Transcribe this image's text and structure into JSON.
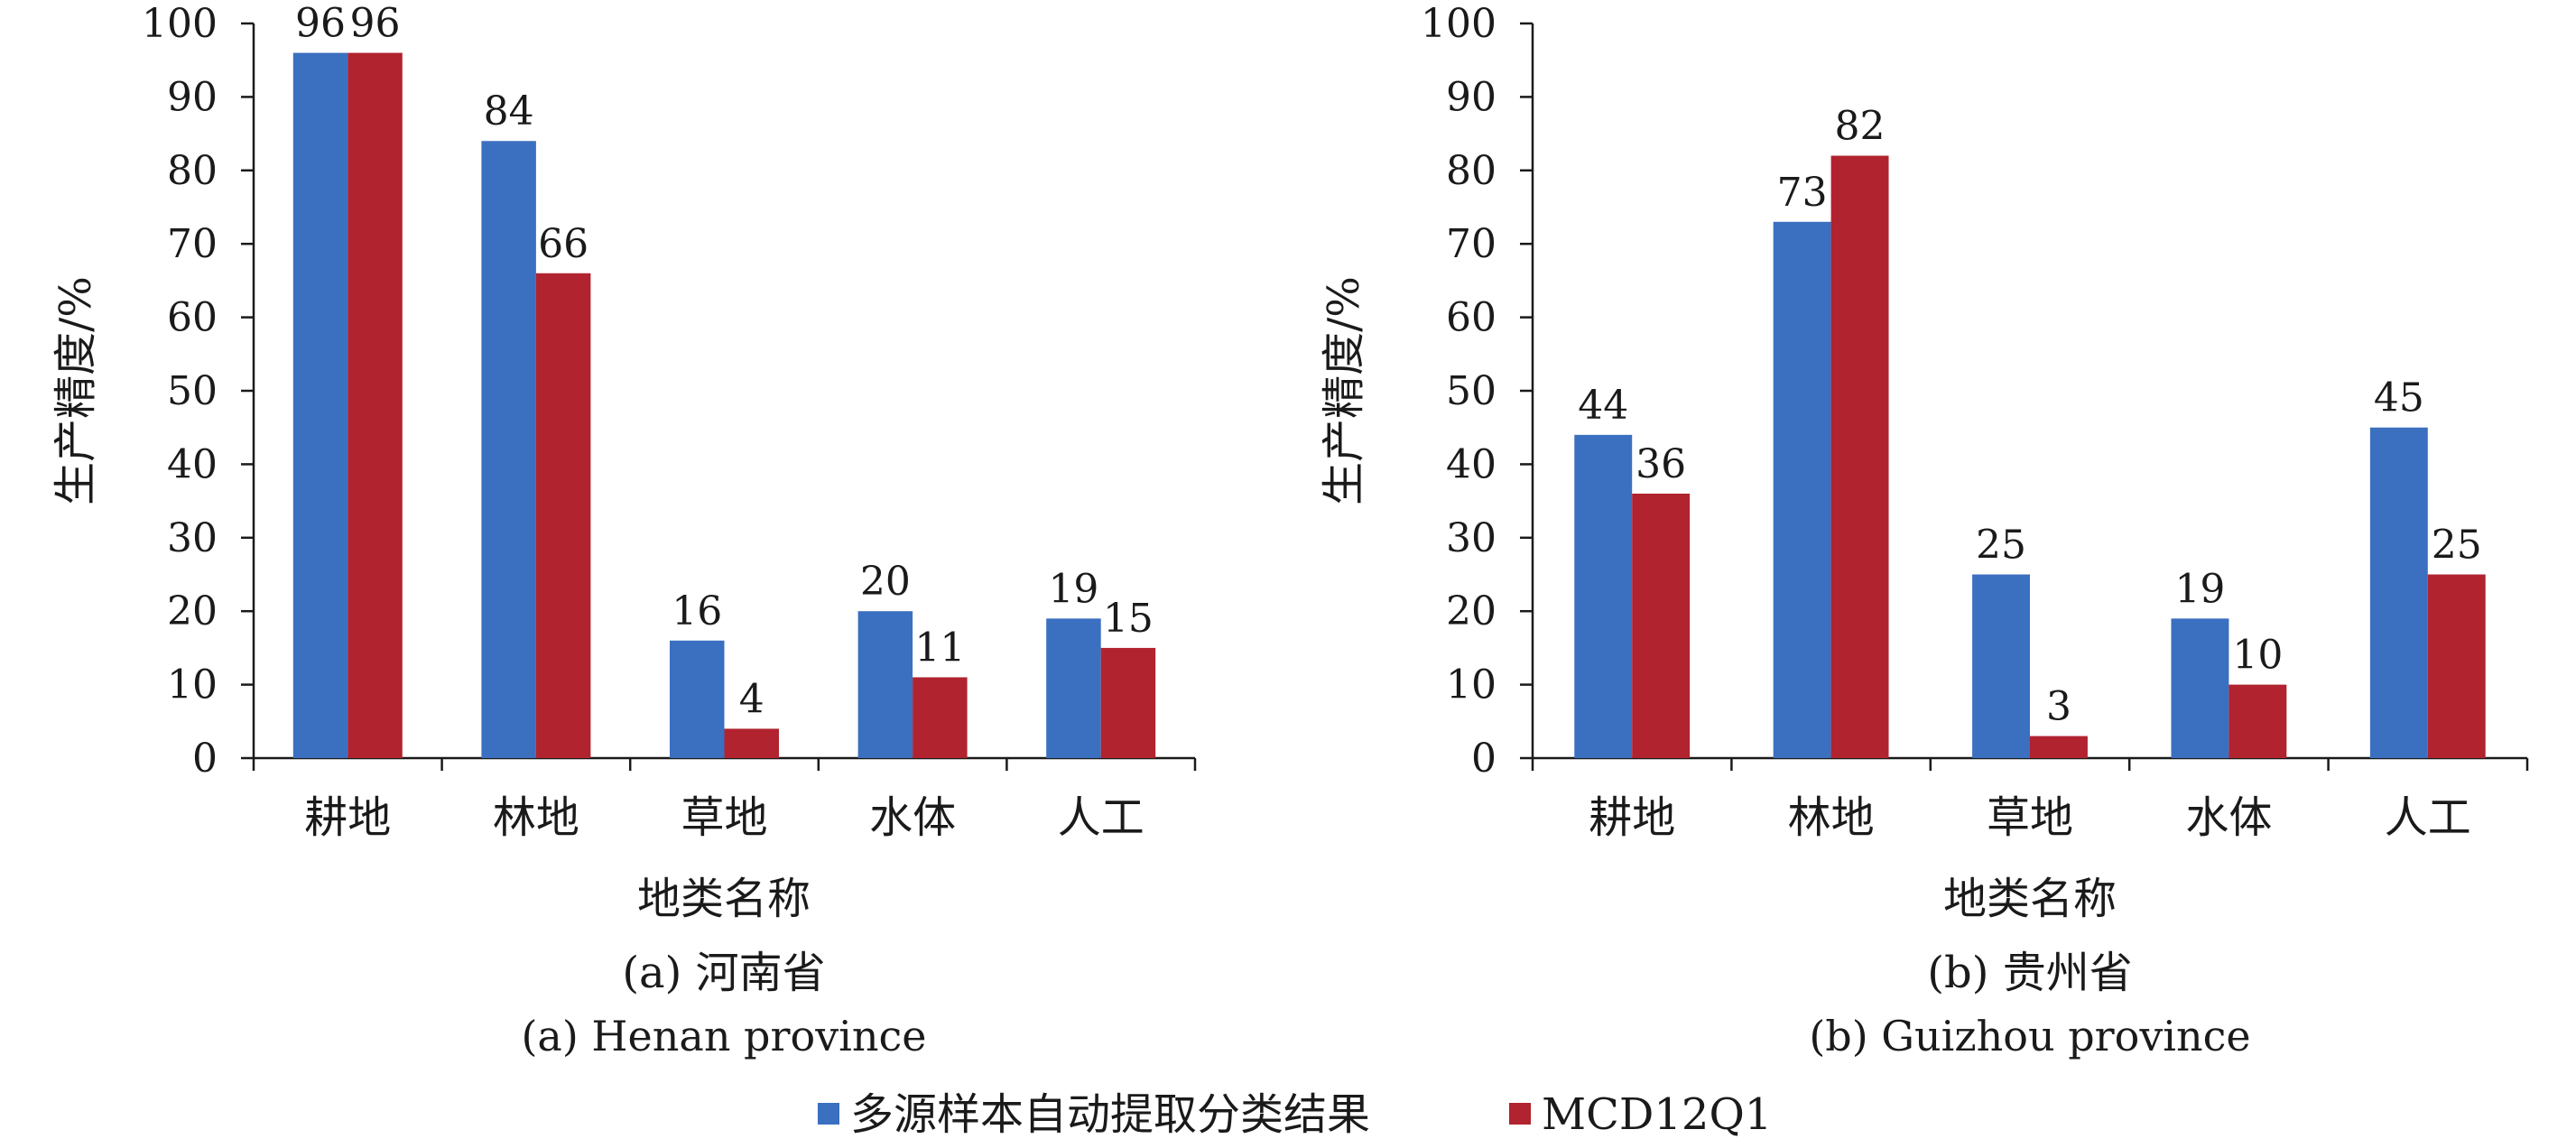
{
  "colors": {
    "series1": "#3b6fc0",
    "series2": "#b0232f",
    "axis": "#1a1a1a"
  },
  "chart_data": [
    {
      "type": "bar",
      "title": "(a) 河南省",
      "subtitle": "(a) Henan province",
      "xlabel": "地类名称",
      "ylabel": "生产精度/%",
      "ylim": [
        0,
        100
      ],
      "yticks": [
        "0",
        "10",
        "20",
        "30",
        "40",
        "50",
        "60",
        "70",
        "80",
        "90",
        "100"
      ],
      "categories": [
        "耕地",
        "林地",
        "草地",
        "水体",
        "人工"
      ],
      "series": [
        {
          "name": "多源样本自动提取分类结果",
          "values": [
            96,
            84,
            16,
            20,
            19
          ]
        },
        {
          "name": "MCD12Q1",
          "values": [
            96,
            66,
            4,
            11,
            15
          ]
        }
      ],
      "grid": false
    },
    {
      "type": "bar",
      "title": "(b) 贵州省",
      "subtitle": "(b) Guizhou province",
      "xlabel": "地类名称",
      "ylabel": "生产精度/%",
      "ylim": [
        0,
        100
      ],
      "yticks": [
        "0",
        "10",
        "20",
        "30",
        "40",
        "50",
        "60",
        "70",
        "80",
        "90",
        "100"
      ],
      "categories": [
        "耕地",
        "林地",
        "草地",
        "水体",
        "人工"
      ],
      "series": [
        {
          "name": "多源样本自动提取分类结果",
          "values": [
            44,
            73,
            25,
            19,
            45
          ]
        },
        {
          "name": "MCD12Q1",
          "values": [
            36,
            82,
            3,
            10,
            25
          ]
        }
      ],
      "grid": false
    }
  ],
  "legend": {
    "position": "bottom-center",
    "items": [
      "多源样本自动提取分类结果",
      "MCD12Q1"
    ]
  }
}
